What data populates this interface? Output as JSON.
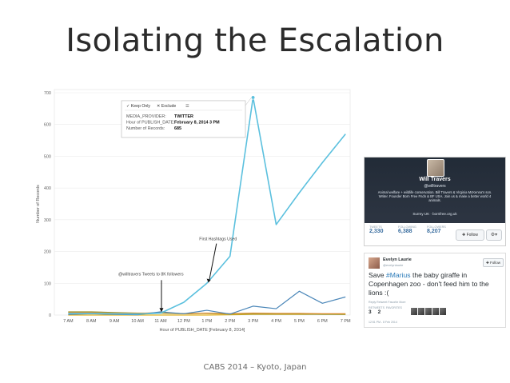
{
  "slide": {
    "title": "Isolating the Escalation",
    "footer": "CABS 2014 – Kyoto, Japan"
  },
  "tooltip": {
    "keep_only": "Keep Only",
    "exclude": "Exclude",
    "rows": [
      {
        "label": "MEDIA_PROVIDER:",
        "value": "TWITTER"
      },
      {
        "label": "Hour of PUBLISH_DATE:",
        "value": "February 8, 2014 3 PM"
      },
      {
        "label": "Number of Records:",
        "value": "685"
      }
    ]
  },
  "annotations": {
    "hashtags": "First Hashtags Used",
    "followers": "@willtravers Tweets to 8K followers"
  },
  "colors": {
    "twitter": "#5bc0de",
    "blue": "#4a86b8",
    "orange": "#d98c2b",
    "olive": "#9a9a32",
    "gold": "#e0b020"
  },
  "chart_data": {
    "type": "line",
    "xlabel": "Hour of PUBLISH_DATE [February 8, 2014]",
    "ylabel": "Number of Records",
    "ylim": [
      0,
      700
    ],
    "yticks": [
      0,
      100,
      200,
      300,
      400,
      500,
      600,
      700
    ],
    "categories": [
      "7 AM",
      "8 AM",
      "9 AM",
      "10 AM",
      "11 AM",
      "12 PM",
      "1 PM",
      "2 PM",
      "3 PM",
      "4 PM",
      "5 PM",
      "6 PM",
      "7 PM"
    ],
    "grid": true,
    "series": [
      {
        "color": "#5bc0de",
        "values": [
          5,
          5,
          4,
          3,
          6,
          40,
          100,
          185,
          685,
          285,
          385,
          480,
          570
        ]
      },
      {
        "color": "#4a86b8",
        "values": [
          2,
          4,
          2,
          1,
          10,
          4,
          15,
          3,
          28,
          20,
          75,
          37,
          57
        ]
      },
      {
        "color": "#d98c2b",
        "values": [
          8,
          8,
          6,
          5,
          8,
          4,
          6,
          4,
          6,
          5,
          5,
          4,
          4
        ]
      },
      {
        "color": "#9a9a32",
        "values": [
          10,
          10,
          8,
          6,
          6,
          4,
          5,
          3,
          3,
          3,
          3,
          2,
          2
        ]
      },
      {
        "color": "#e0b020",
        "values": [
          0,
          0,
          0,
          0,
          0,
          0,
          0,
          1,
          2,
          2,
          2,
          3,
          2
        ]
      }
    ]
  },
  "profile": {
    "name": "Will Travers",
    "handle": "@willtravers",
    "bio": "Animal welfare + wildlife conservation. Bill Travers & Virginia McKenna's son. Writer. Founder Born Free Fndn & BF USA. Join us & make a better world 4 animals.",
    "location": "Surrey UK · bornfree.org.uk",
    "stats": [
      {
        "label": "TWEETS",
        "value": "2,330"
      },
      {
        "label": "FOLLOWING",
        "value": "6,388"
      },
      {
        "label": "FOLLOWERS",
        "value": "8,207"
      }
    ],
    "follow_label": "Follow"
  },
  "tweet": {
    "name": "Evelyn Laurie",
    "handle": "@evelynlaurie",
    "follow_label": "Follow",
    "text_before": "Save ",
    "hashtag": "#Marius",
    "text_after": " the baby giraffe in Copenhagen zoo - don't feed him to the lions :(",
    "actions": "Reply  Retweet  Favorite  More",
    "retweets_label": "RETWEETS",
    "retweets": "3",
    "favorites_label": "FAVORITES",
    "favorites": "2",
    "date": "12:51 PM - 8 Feb 2014"
  }
}
